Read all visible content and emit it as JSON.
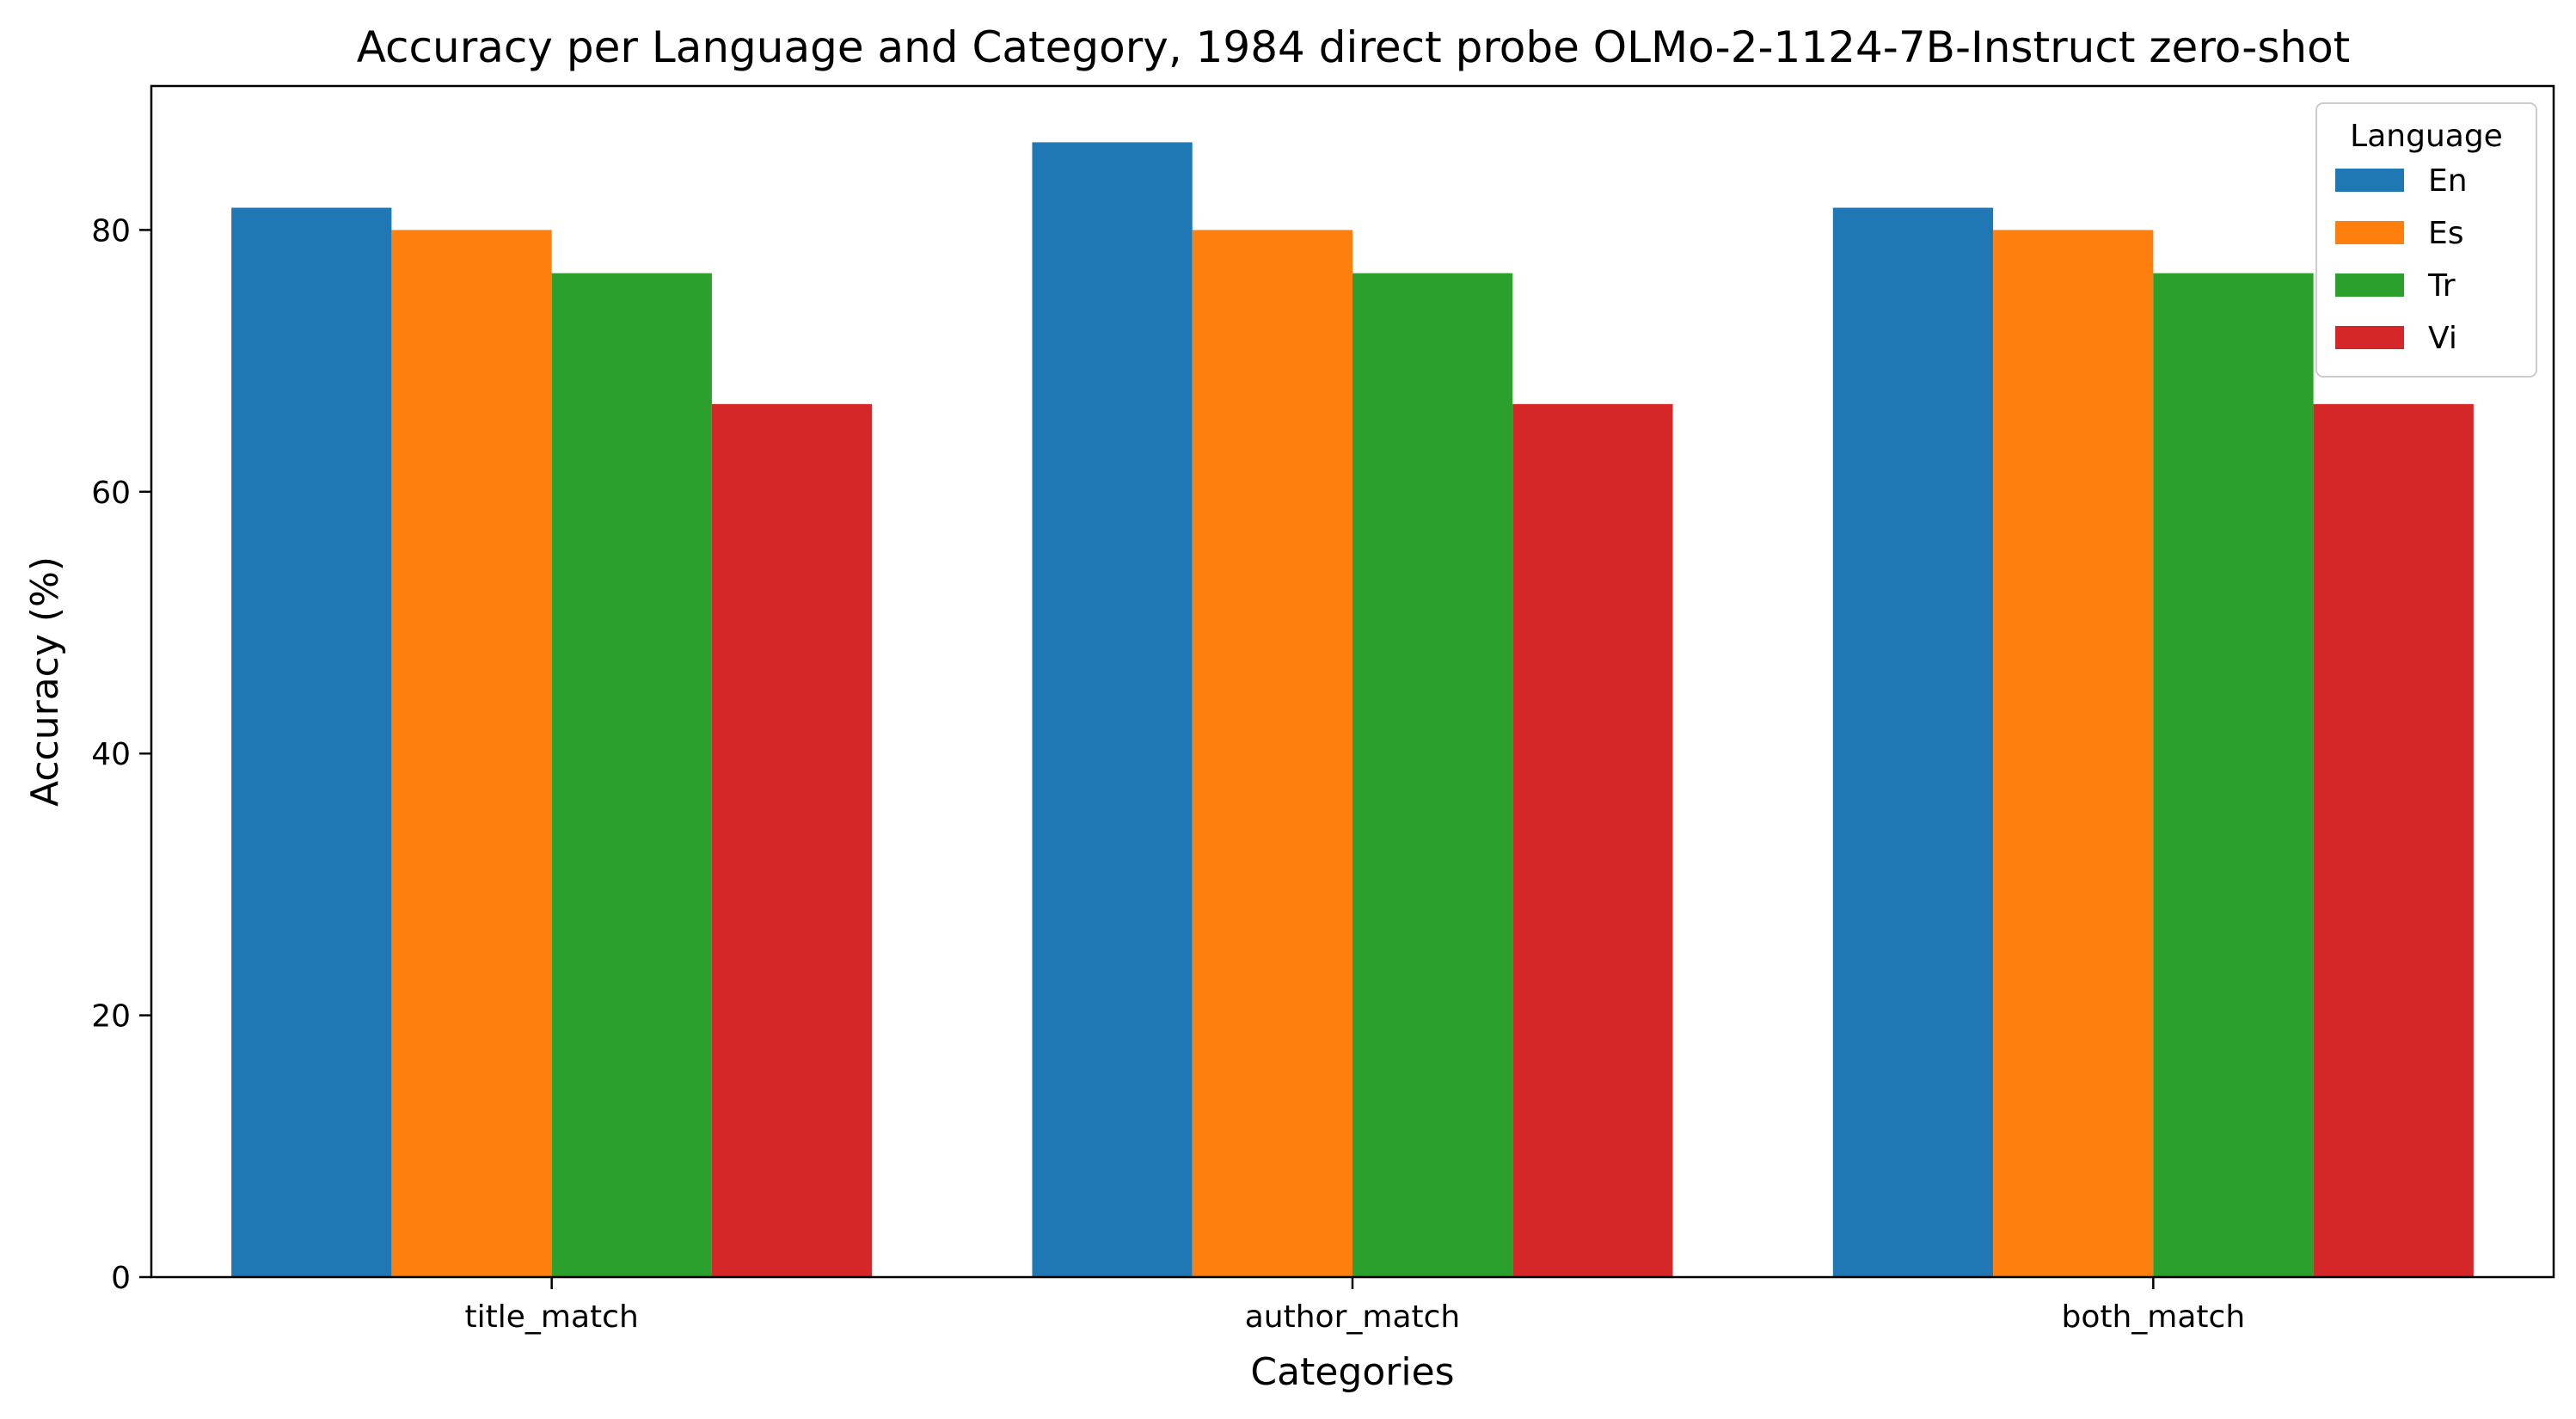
{
  "chart_data": {
    "type": "bar",
    "title": "Accuracy per Language and Category, 1984 direct probe OLMo-2-1124-7B-Instruct zero-shot",
    "xlabel": "Categories",
    "ylabel": "Accuracy (%)",
    "categories": [
      "title_match",
      "author_match",
      "both_match"
    ],
    "series": [
      {
        "name": "En",
        "color": "#1f77b4",
        "values": [
          81.7,
          86.7,
          81.7
        ]
      },
      {
        "name": "Es",
        "color": "#ff7f0e",
        "values": [
          80.0,
          80.0,
          80.0
        ]
      },
      {
        "name": "Tr",
        "color": "#2ca02c",
        "values": [
          76.7,
          76.7,
          76.7
        ]
      },
      {
        "name": "Vi",
        "color": "#d62728",
        "values": [
          66.7,
          66.7,
          66.7
        ]
      }
    ],
    "ylim": [
      0,
      91
    ],
    "yticks": [
      0,
      20,
      40,
      60,
      80
    ],
    "grid": false,
    "legend": {
      "title": "Language",
      "placement": "top-right"
    }
  }
}
